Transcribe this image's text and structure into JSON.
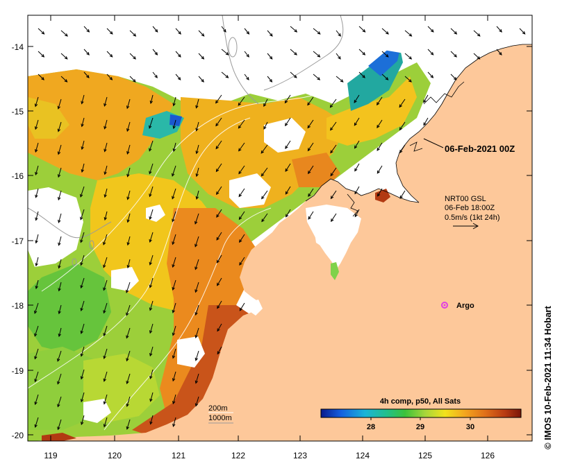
{
  "map": {
    "timestamp": "06-Feb-2021 00Z",
    "current_legend": {
      "line1": "NRT00 GSL",
      "line2": "06-Feb 18:00Z",
      "line3": "0.5m/s (1kt 24h)"
    },
    "argo_label": "Argo",
    "depth_labels": [
      "200m",
      "1000m"
    ],
    "colorbar": {
      "title": "4h comp, p50, All Sats",
      "ticks": [
        "28",
        "29",
        "30"
      ],
      "colors": [
        "#0a1a8c",
        "#1560e0",
        "#1ab4d8",
        "#22c08a",
        "#3cc23a",
        "#a6d63a",
        "#f2e21c",
        "#f3a51e",
        "#e0701a",
        "#b83a12",
        "#7a1608"
      ]
    },
    "credit": "© IMOS 10-Feb-2021 11:34 Hobart",
    "x_ticks": [
      "119",
      "120",
      "121",
      "122",
      "123",
      "124",
      "125",
      "126"
    ],
    "y_ticks": [
      "-14",
      "-15",
      "-16",
      "-17",
      "-18",
      "-19",
      "-20"
    ],
    "colors": {
      "land": "#fdc89a",
      "argo": "#e040e0"
    }
  }
}
